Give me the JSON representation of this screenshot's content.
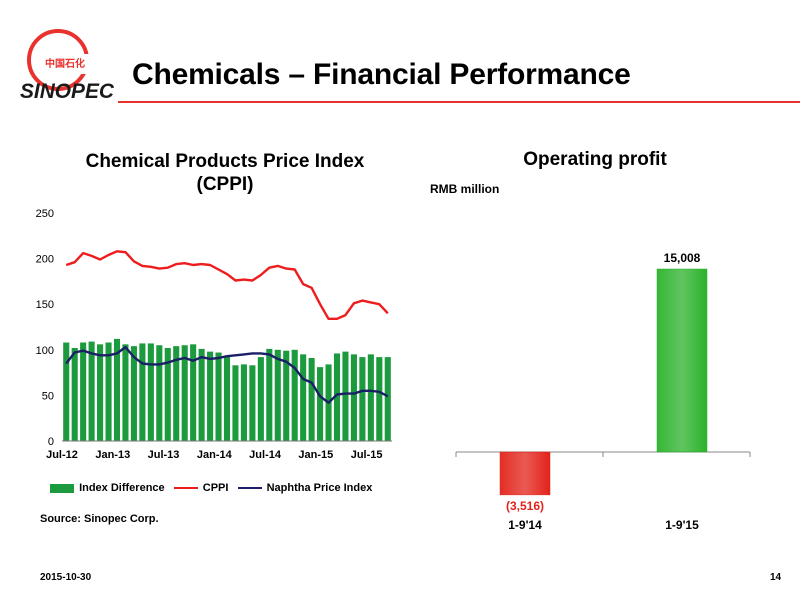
{
  "slide": {
    "title": "Chemicals – Financial Performance",
    "date": "2015-10-30",
    "page": "14",
    "source": "Source: Sinopec Corp.",
    "logo_text": "SINOPEC",
    "logo_cn": "中国石化"
  },
  "colors": {
    "accent_red": "#e8322d",
    "bar_green": "#1c9a3e",
    "cppi_red": "#ee1c1c",
    "naphtha_navy": "#1a1f66"
  },
  "chart_data": [
    {
      "type": "bar",
      "title": "Chemical Products Price Index (CPPI)",
      "title_lines": [
        "Chemical Products Price Index",
        "(CPPI)"
      ],
      "xlabel": "",
      "ylabel": "",
      "ylim": [
        0,
        250
      ],
      "yticks": [
        0,
        50,
        100,
        150,
        200,
        250
      ],
      "xticks": [
        "Jul-12",
        "Jan-13",
        "Jul-13",
        "Jan-14",
        "Jul-14",
        "Jan-15",
        "Jul-15"
      ],
      "legend": "bottom",
      "grid": false,
      "categories": [
        "Jul-12",
        "Aug-12",
        "Sep-12",
        "Oct-12",
        "Nov-12",
        "Dec-12",
        "Jan-13",
        "Feb-13",
        "Mar-13",
        "Apr-13",
        "May-13",
        "Jun-13",
        "Jul-13",
        "Aug-13",
        "Sep-13",
        "Oct-13",
        "Nov-13",
        "Dec-13",
        "Jan-14",
        "Feb-14",
        "Mar-14",
        "Apr-14",
        "May-14",
        "Jun-14",
        "Jul-14",
        "Aug-14",
        "Sep-14",
        "Oct-14",
        "Nov-14",
        "Dec-14",
        "Jan-15",
        "Feb-15",
        "Mar-15",
        "Apr-15",
        "May-15",
        "Jun-15",
        "Jul-15",
        "Aug-15",
        "Sep-15"
      ],
      "series": [
        {
          "name": "Index Difference",
          "type": "bar",
          "color": "#1c9a3e",
          "values": [
            108,
            102,
            108,
            109,
            106,
            108,
            112,
            106,
            104,
            107,
            107,
            105,
            102,
            104,
            105,
            106,
            101,
            98,
            97,
            93,
            83,
            84,
            83,
            92,
            101,
            100,
            99,
            100,
            95,
            91,
            81,
            84,
            96,
            98,
            95,
            92,
            95,
            92,
            92
          ]
        },
        {
          "name": "CPPI",
          "type": "line",
          "color": "#ee1c1c",
          "values": [
            193,
            196,
            206,
            203,
            199,
            204,
            208,
            207,
            197,
            192,
            191,
            189,
            190,
            194,
            195,
            193,
            194,
            193,
            188,
            183,
            176,
            177,
            176,
            182,
            190,
            192,
            189,
            188,
            172,
            168,
            150,
            134,
            134,
            138,
            151,
            154,
            152,
            150,
            140
          ]
        },
        {
          "name": "Naphtha Price Index",
          "type": "line",
          "color": "#1a1f66",
          "values": [
            85,
            97,
            99,
            96,
            94,
            94,
            96,
            103,
            92,
            85,
            84,
            84,
            86,
            89,
            91,
            88,
            92,
            90,
            91,
            93,
            94,
            95,
            96,
            96,
            95,
            90,
            87,
            80,
            68,
            64,
            49,
            42,
            51,
            52,
            52,
            55,
            55,
            54,
            49
          ]
        }
      ]
    },
    {
      "type": "bar",
      "title": "Operating profit",
      "unit": "RMB million",
      "categories": [
        "1-9'14",
        "1-9'15"
      ],
      "values": [
        -3516,
        15008
      ],
      "value_labels": [
        "(3,516)",
        "15,008"
      ],
      "colors": [
        "#e2231a",
        "#2bb22b"
      ],
      "grid": false
    }
  ]
}
